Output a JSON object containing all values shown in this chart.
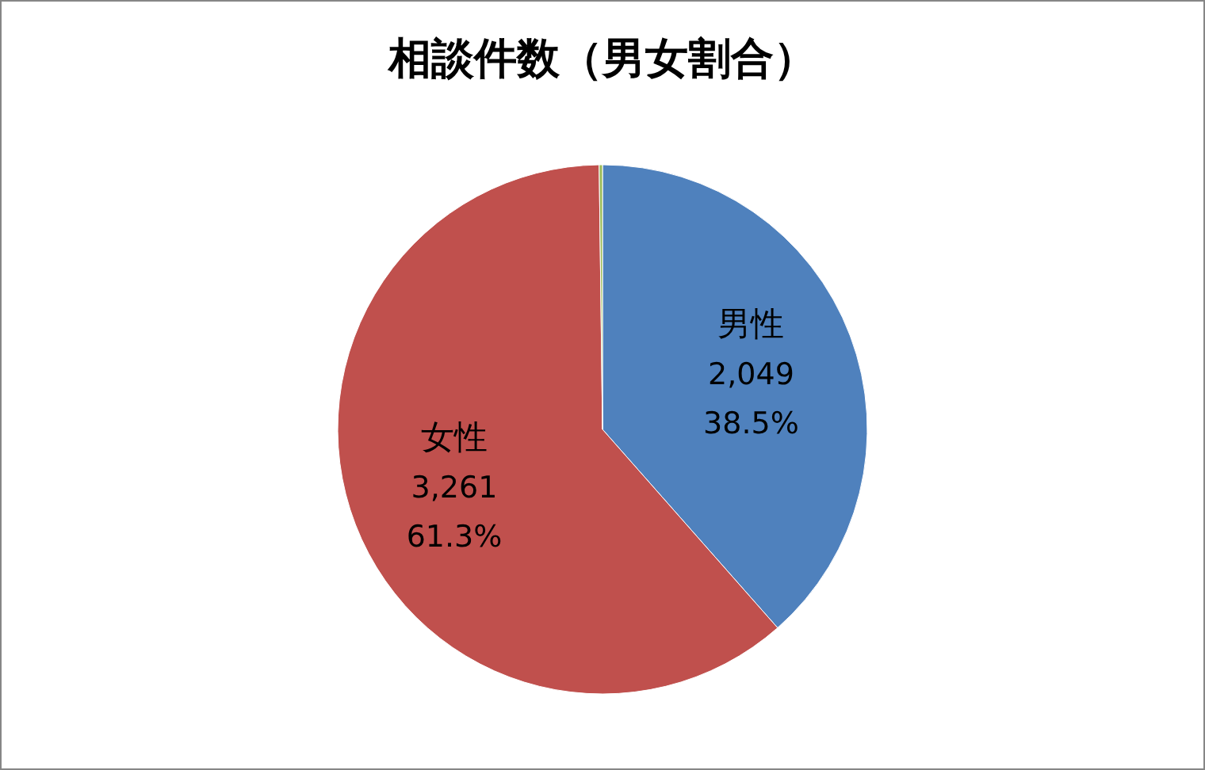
{
  "chart_data": {
    "type": "pie",
    "title": "相談件数（男女割合）",
    "categories": [
      "男性",
      "女性",
      null
    ],
    "values": [
      38.5,
      61.3,
      0.2
    ],
    "value_labels": [
      "38.5%",
      "61.3%",
      null
    ],
    "annotations": [
      {
        "text": "2,049",
        "x": "男性"
      },
      {
        "text": "3,261",
        "x": "女性"
      }
    ],
    "colors": [
      "#4f81bd",
      "#c0504d",
      "#9bbb59"
    ]
  }
}
